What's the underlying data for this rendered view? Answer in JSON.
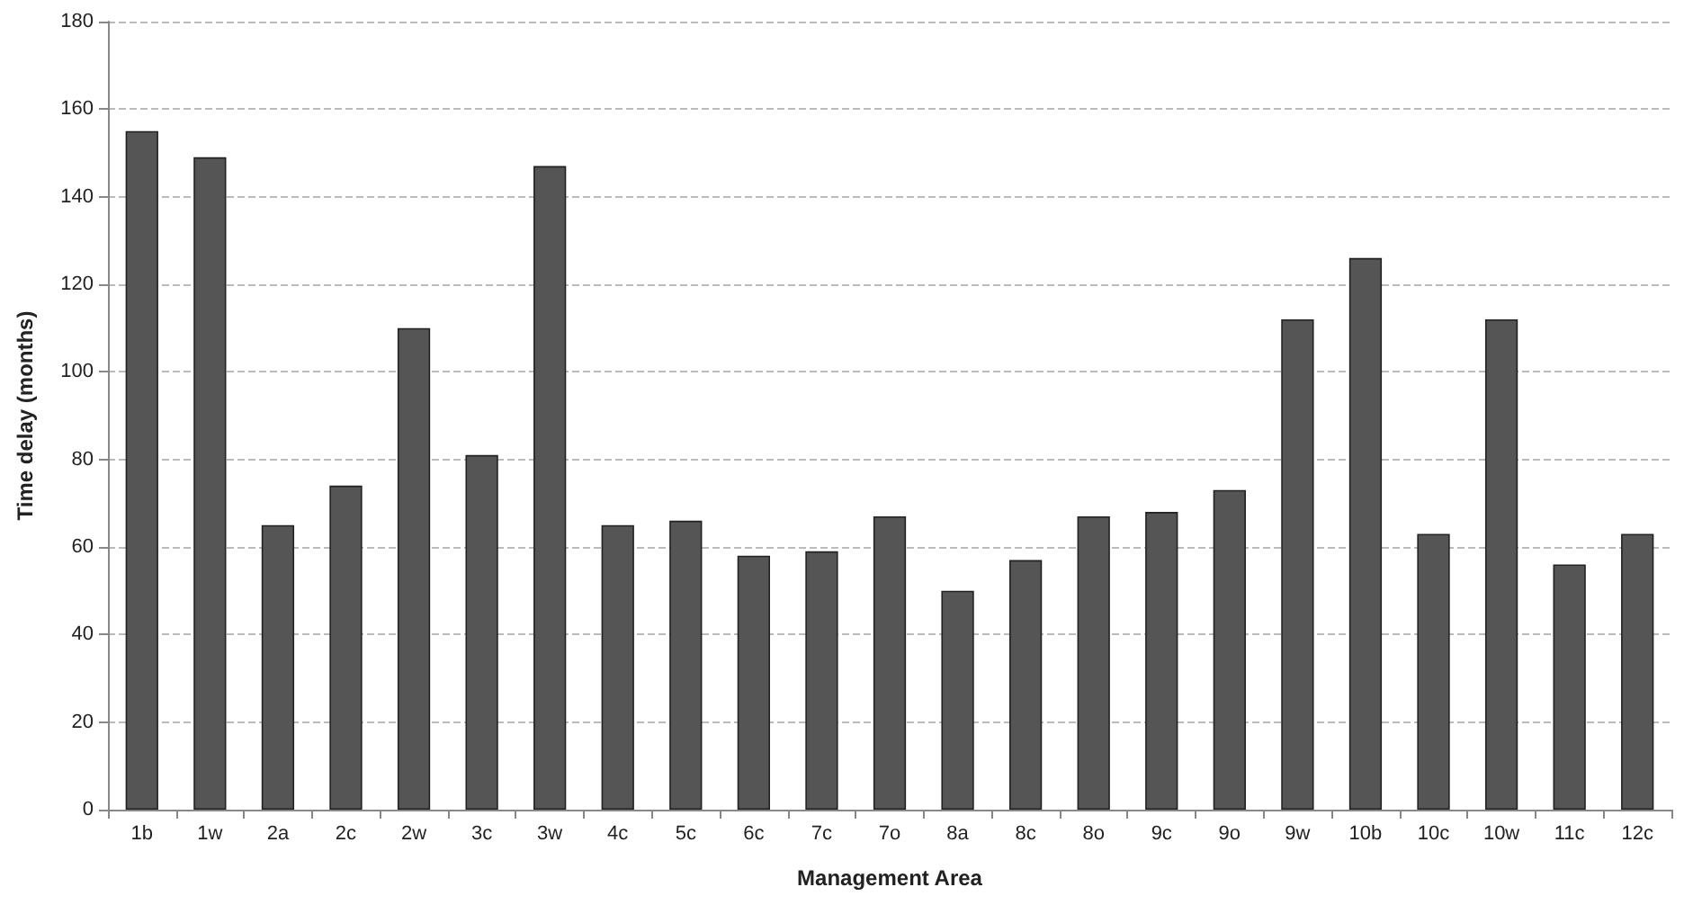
{
  "chart_data": {
    "type": "bar",
    "xlabel": "Management Area",
    "ylabel": "Time delay (months)",
    "categories": [
      "1b",
      "1w",
      "2a",
      "2c",
      "2w",
      "3c",
      "3w",
      "4c",
      "5c",
      "6c",
      "7c",
      "7o",
      "8a",
      "8c",
      "8o",
      "9c",
      "9o",
      "9w",
      "10b",
      "10c",
      "10w",
      "11c",
      "12c"
    ],
    "values": [
      155,
      149,
      65,
      74,
      110,
      81,
      147,
      65,
      66,
      58,
      59,
      67,
      50,
      57,
      67,
      68,
      73,
      112,
      126,
      63,
      112,
      56,
      63
    ],
    "color": "#555555",
    "ylim": [
      0,
      180
    ],
    "yticks": [
      0,
      20,
      40,
      60,
      80,
      100,
      120,
      140,
      160,
      180
    ],
    "grid": "y"
  }
}
